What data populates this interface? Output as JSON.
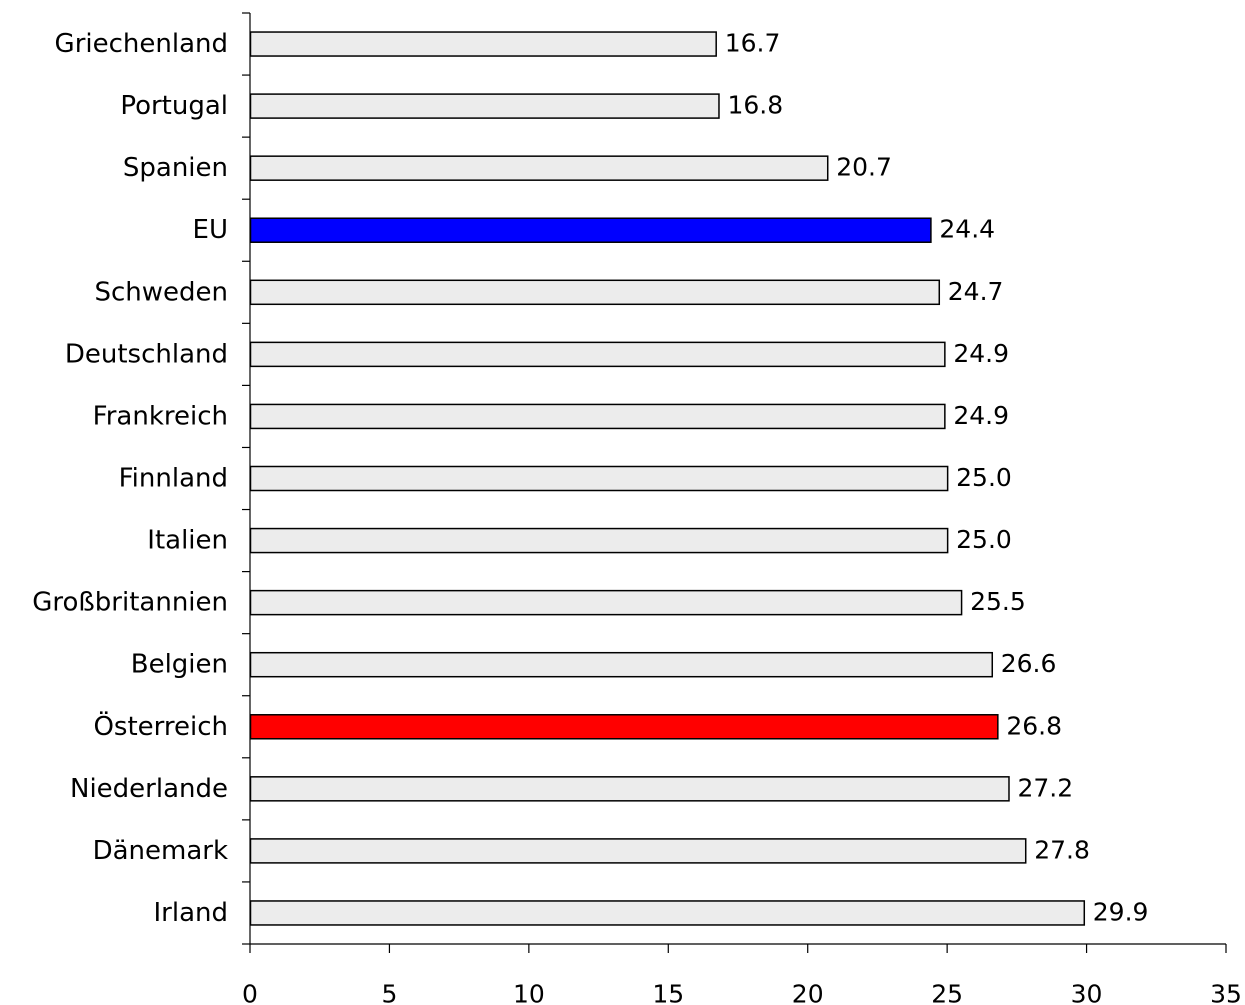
{
  "chart_data": {
    "type": "bar",
    "orientation": "horizontal",
    "categories": [
      "Griechenland",
      "Portugal",
      "Spanien",
      "EU",
      "Schweden",
      "Deutschland",
      "Frankreich",
      "Finnland",
      "Italien",
      "Großbritannien",
      "Belgien",
      "Österreich",
      "Niederlande",
      "Dänemark",
      "Irland"
    ],
    "values": [
      16.7,
      16.8,
      20.7,
      24.4,
      24.7,
      24.9,
      24.9,
      25.0,
      25.0,
      25.5,
      26.6,
      26.8,
      27.2,
      27.8,
      29.9
    ],
    "value_labels": [
      "16.7",
      "16.8",
      "20.7",
      "24.4",
      "24.7",
      "24.9",
      "24.9",
      "25.0",
      "25.0",
      "25.5",
      "26.6",
      "26.8",
      "27.2",
      "27.8",
      "29.9"
    ],
    "bar_colors": [
      "#ececec",
      "#ececec",
      "#ececec",
      "#0000ff",
      "#ececec",
      "#ececec",
      "#ececec",
      "#ececec",
      "#ececec",
      "#ececec",
      "#ececec",
      "#ff0000",
      "#ececec",
      "#ececec",
      "#ececec"
    ],
    "x_ticks": [
      "0",
      "5",
      "10",
      "15",
      "20",
      "25",
      "30",
      "35"
    ],
    "xlim": [
      0,
      35
    ],
    "title": "",
    "xlabel": "",
    "ylabel": "",
    "grid": false,
    "legend": "none"
  }
}
